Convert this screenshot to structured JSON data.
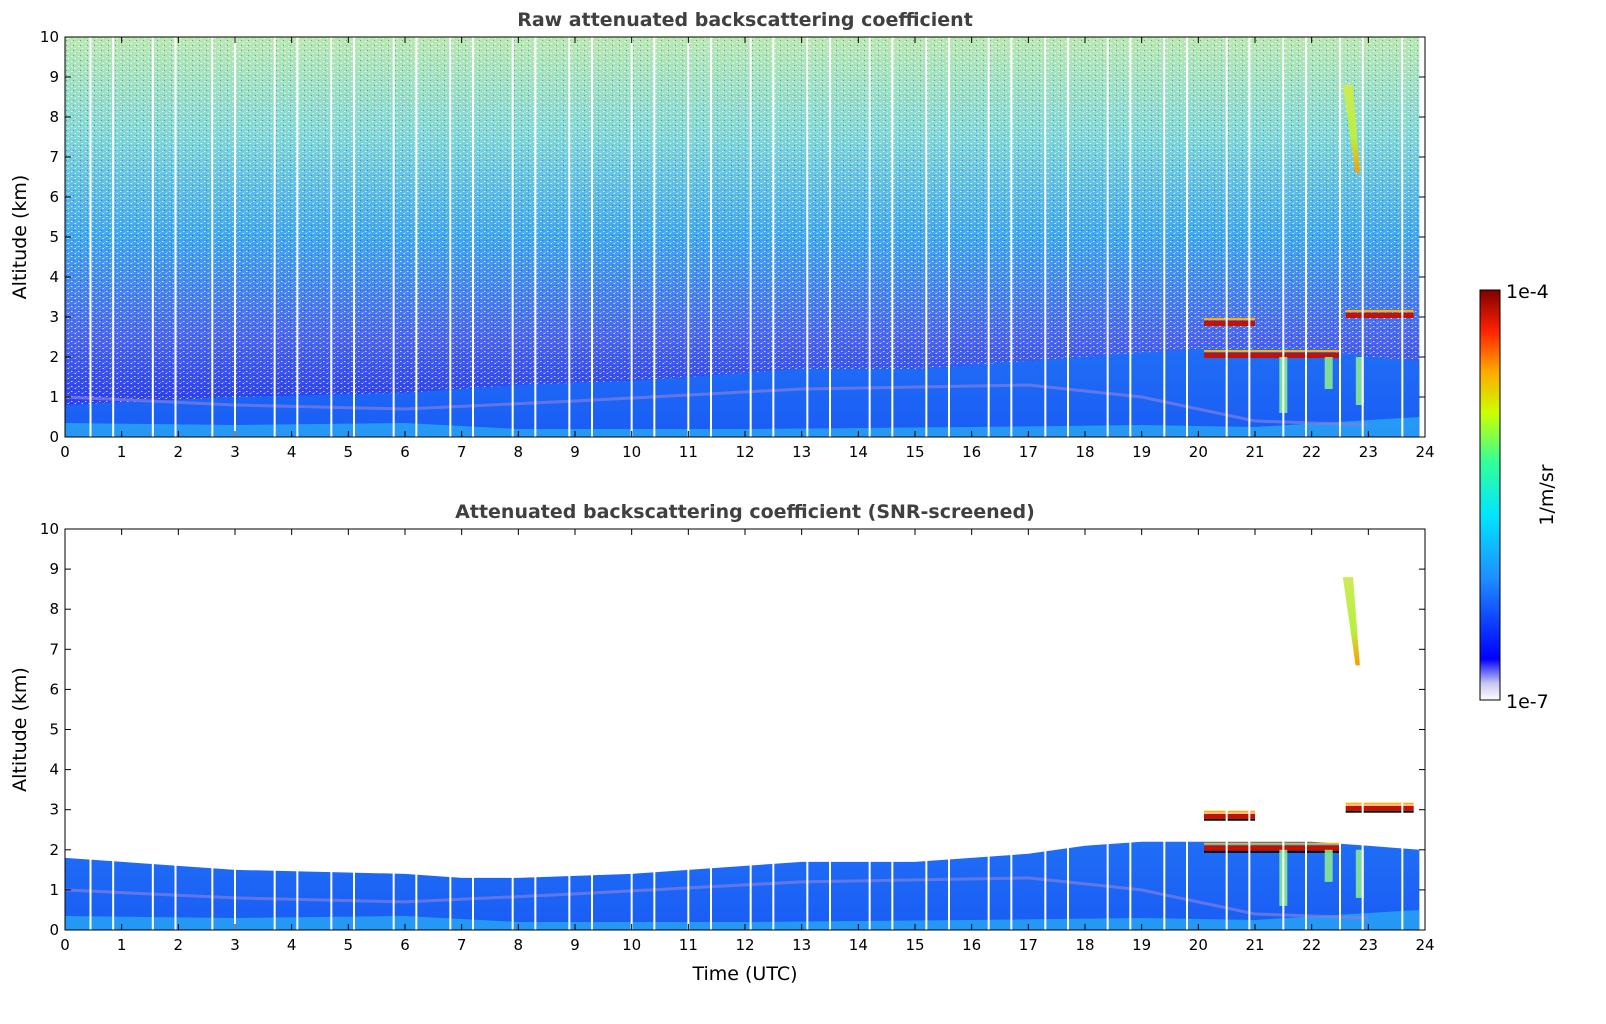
{
  "chart_data": [
    {
      "type": "heatmap",
      "title": "Raw attenuated backscattering coefficient",
      "xlabel": "",
      "ylabel": "Altitude (km)",
      "xlim": [
        0,
        24
      ],
      "ylim": [
        0,
        10
      ],
      "xticks": [
        0,
        1,
        2,
        3,
        4,
        5,
        6,
        7,
        8,
        9,
        10,
        11,
        12,
        13,
        14,
        15,
        16,
        17,
        18,
        19,
        20,
        21,
        22,
        23,
        24
      ],
      "yticks": [
        0,
        1,
        2,
        3,
        4,
        5,
        6,
        7,
        8,
        9,
        10
      ],
      "screened": false,
      "boundary_layer_top_km": {
        "x": [
          0,
          3,
          6,
          7,
          8,
          10,
          12,
          13,
          15,
          17,
          18,
          19,
          20,
          21,
          22,
          23,
          23.9
        ],
        "y": [
          0.8,
          1.0,
          1.1,
          1.2,
          1.3,
          1.4,
          1.6,
          1.7,
          1.7,
          1.9,
          2.0,
          2.1,
          2.2,
          2.2,
          2.2,
          2.0,
          1.9
        ]
      },
      "cloud_layers": [
        {
          "x_start": 20.1,
          "x_end": 22.5,
          "altitude_km": 2.0,
          "level": "high"
        },
        {
          "x_start": 20.1,
          "x_end": 21.0,
          "altitude_km": 2.8,
          "level": "high"
        },
        {
          "x_start": 22.6,
          "x_end": 23.8,
          "altitude_km": 3.0,
          "level": "high"
        },
        {
          "x_start": 22.55,
          "x_end": 22.85,
          "altitude_km_range": [
            6.6,
            8.8
          ],
          "level": "mid"
        }
      ],
      "data_gaps_hours": [
        0.45,
        0.85,
        1.55,
        1.95,
        2.6,
        3.0,
        3.7,
        4.1,
        4.7,
        5.1,
        5.8,
        6.2,
        6.8,
        7.2,
        7.9,
        8.3,
        8.9,
        9.3,
        10.0,
        10.4,
        11.0,
        11.4,
        12.1,
        12.5,
        13.1,
        13.5,
        14.2,
        14.6,
        15.2,
        15.6,
        16.3,
        16.7,
        17.3,
        17.7,
        18.4,
        18.8,
        19.4,
        19.8,
        20.5,
        20.9,
        21.5,
        21.9,
        22.5,
        22.9,
        23.6
      ]
    },
    {
      "type": "heatmap",
      "title": "Attenuated backscattering coefficient (SNR-screened)",
      "xlabel": "Time (UTC)",
      "ylabel": "Altitude (km)",
      "xlim": [
        0,
        24
      ],
      "ylim": [
        0,
        10
      ],
      "xticks": [
        0,
        1,
        2,
        3,
        4,
        5,
        6,
        7,
        8,
        9,
        10,
        11,
        12,
        13,
        14,
        15,
        16,
        17,
        18,
        19,
        20,
        21,
        22,
        23,
        24
      ],
      "yticks": [
        0,
        1,
        2,
        3,
        4,
        5,
        6,
        7,
        8,
        9,
        10
      ],
      "screened": true,
      "boundary_layer_top_km": {
        "x": [
          0,
          3,
          6,
          7,
          8,
          10,
          12,
          13,
          15,
          17,
          18,
          19,
          20,
          21,
          22,
          23,
          23.9
        ],
        "y": [
          1.8,
          1.5,
          1.4,
          1.3,
          1.3,
          1.4,
          1.6,
          1.7,
          1.7,
          1.9,
          2.1,
          2.2,
          2.2,
          2.2,
          2.2,
          2.1,
          2.0
        ]
      },
      "cloud_layers": [
        {
          "x_start": 20.1,
          "x_end": 22.5,
          "altitude_km": 2.0,
          "level": "high"
        },
        {
          "x_start": 20.1,
          "x_end": 21.0,
          "altitude_km": 2.8,
          "level": "high"
        },
        {
          "x_start": 22.6,
          "x_end": 23.8,
          "altitude_km": 3.0,
          "level": "high"
        },
        {
          "x_start": 22.55,
          "x_end": 22.85,
          "altitude_km_range": [
            6.6,
            8.8
          ],
          "level": "mid"
        }
      ],
      "data_gaps_hours": [
        0.45,
        0.85,
        1.55,
        1.95,
        2.6,
        3.0,
        3.7,
        4.1,
        4.7,
        5.1,
        5.8,
        6.2,
        6.8,
        7.2,
        7.9,
        8.3,
        8.9,
        9.3,
        10.0,
        10.4,
        11.0,
        11.4,
        12.1,
        12.5,
        13.1,
        13.5,
        14.2,
        14.6,
        15.2,
        15.6,
        16.3,
        16.7,
        17.3,
        17.7,
        18.4,
        18.8,
        19.4,
        19.8,
        20.5,
        20.9,
        21.5,
        21.9,
        22.5,
        22.9,
        23.6
      ]
    }
  ],
  "colorbar": {
    "label": "1/m/sr",
    "max_label": "1e-4",
    "min_label": "1e-7",
    "scale": "log",
    "colormap": [
      "#ffffff",
      "#c8c8f0",
      "#0000ff",
      "#1e90ff",
      "#00e5ff",
      "#33ff99",
      "#ccff00",
      "#ffaa00",
      "#ff2200",
      "#800000"
    ]
  }
}
